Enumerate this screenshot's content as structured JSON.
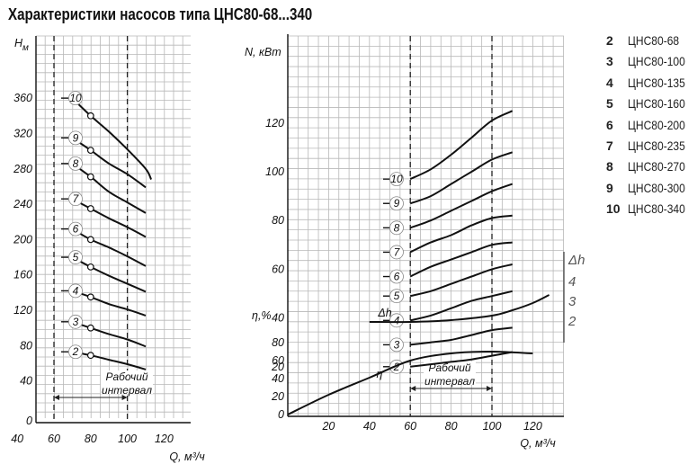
{
  "title": "Характеристики насосов типа ЦНС80-68...340",
  "legend": [
    {
      "num": "2",
      "label": "ЦНС80-68"
    },
    {
      "num": "3",
      "label": "ЦНС80-100"
    },
    {
      "num": "4",
      "label": "ЦНС80-135"
    },
    {
      "num": "5",
      "label": "ЦНС80-160"
    },
    {
      "num": "6",
      "label": "ЦНС80-200"
    },
    {
      "num": "7",
      "label": "ЦНС80-235"
    },
    {
      "num": "8",
      "label": "ЦНС80-270"
    },
    {
      "num": "9",
      "label": "ЦНС80-300"
    },
    {
      "num": "10",
      "label": "ЦНС80-340"
    }
  ],
  "chart_data": [
    {
      "type": "line",
      "ylabel_main": "H",
      "ylabel_sub": "м",
      "xlabel": "Q, м³/ч",
      "xlim": [
        30,
        120
      ],
      "ylim": [
        0,
        380
      ],
      "xticks": [
        "40",
        "60",
        "80",
        "100",
        "120"
      ],
      "yticks": [
        "0",
        "40",
        "80",
        "120",
        "160",
        "200",
        "240",
        "280",
        "320",
        "360"
      ],
      "working_interval": {
        "label_line1": "Рабочий",
        "label_line2": "интервал",
        "from": 60,
        "to": 100
      },
      "series": [
        {
          "name": "2",
          "x": [
            70,
            80,
            90,
            100,
            110
          ],
          "y": [
            73,
            69,
            64,
            59,
            53
          ]
        },
        {
          "name": "3",
          "x": [
            70,
            80,
            90,
            100,
            110
          ],
          "y": [
            107,
            100,
            93,
            87,
            79
          ]
        },
        {
          "name": "4",
          "x": [
            70,
            80,
            90,
            100,
            110
          ],
          "y": [
            142,
            135,
            127,
            121,
            114
          ]
        },
        {
          "name": "5",
          "x": [
            70,
            80,
            90,
            100,
            110
          ],
          "y": [
            180,
            169,
            159,
            150,
            141
          ]
        },
        {
          "name": "6",
          "x": [
            70,
            80,
            90,
            100,
            110
          ],
          "y": [
            212,
            200,
            191,
            181,
            170
          ]
        },
        {
          "name": "7",
          "x": [
            70,
            80,
            90,
            100,
            110
          ],
          "y": [
            246,
            235,
            224,
            214,
            203
          ]
        },
        {
          "name": "8",
          "x": [
            70,
            80,
            90,
            100,
            110
          ],
          "y": [
            286,
            271,
            254,
            242,
            230
          ]
        },
        {
          "name": "9",
          "x": [
            70,
            80,
            90,
            100,
            110
          ],
          "y": [
            315,
            301,
            286,
            274,
            259
          ]
        },
        {
          "name": "10",
          "x": [
            70,
            80,
            90,
            100,
            110,
            113
          ],
          "y": [
            360,
            340,
            322,
            302,
            280,
            268
          ]
        }
      ],
      "markers": [
        {
          "x": 80,
          "y": 69
        },
        {
          "x": 80,
          "y": 100
        },
        {
          "x": 80,
          "y": 135
        },
        {
          "x": 80,
          "y": 169
        },
        {
          "x": 80,
          "y": 200
        },
        {
          "x": 80,
          "y": 235
        },
        {
          "x": 80,
          "y": 271
        },
        {
          "x": 80,
          "y": 301
        },
        {
          "x": 80,
          "y": 340
        }
      ]
    },
    {
      "type": "line",
      "ylabel_power": "N, кВт",
      "ylabel_eff": "η,%",
      "xlabel": "Q, м³/ч",
      "xlim": [
        0,
        130
      ],
      "power_ylim": [
        0,
        130
      ],
      "eff_ylim": [
        0,
        90
      ],
      "xticks": [
        "20",
        "40",
        "60",
        "80",
        "100",
        "120"
      ],
      "power_yticks": [
        "20",
        "40",
        "60",
        "80",
        "100",
        "120"
      ],
      "eff_yticks": [
        "0",
        "20",
        "40",
        "60",
        "80"
      ],
      "working_interval": {
        "label_line1": "Рабочий",
        "label_line2": "интервал",
        "from": 60,
        "to": 100
      },
      "power_series": [
        {
          "name": "2",
          "x": [
            60,
            70,
            80,
            90,
            100,
            110
          ],
          "y": [
            20,
            21,
            22,
            23,
            24.5,
            26
          ]
        },
        {
          "name": "3",
          "x": [
            60,
            70,
            80,
            90,
            100,
            110
          ],
          "y": [
            29,
            30,
            31,
            33,
            35,
            36
          ]
        },
        {
          "name": "4",
          "x": [
            60,
            70,
            80,
            90,
            100,
            110
          ],
          "y": [
            39,
            41,
            44,
            47,
            49,
            51
          ]
        },
        {
          "name": "5",
          "x": [
            60,
            70,
            80,
            90,
            100,
            110
          ],
          "y": [
            49,
            51,
            54,
            57,
            60,
            62
          ]
        },
        {
          "name": "6",
          "x": [
            60,
            70,
            80,
            90,
            100,
            110
          ],
          "y": [
            57,
            61,
            64,
            67,
            70,
            71
          ]
        },
        {
          "name": "7",
          "x": [
            60,
            70,
            80,
            90,
            100,
            110
          ],
          "y": [
            67,
            71,
            74,
            78,
            81,
            82
          ]
        },
        {
          "name": "8",
          "x": [
            60,
            70,
            80,
            90,
            100,
            110
          ],
          "y": [
            77,
            80,
            84,
            88,
            92,
            95
          ]
        },
        {
          "name": "9",
          "x": [
            60,
            70,
            80,
            90,
            100,
            110
          ],
          "y": [
            87,
            90,
            95,
            100,
            105,
            108
          ]
        },
        {
          "name": "10",
          "x": [
            60,
            70,
            80,
            90,
            100,
            110
          ],
          "y": [
            97,
            101,
            107,
            114,
            121,
            125
          ]
        }
      ],
      "efficiency_series": {
        "name": "η",
        "x": [
          0,
          20,
          40,
          60,
          80,
          100,
          120
        ],
        "y": [
          0,
          22,
          41,
          60,
          68,
          70,
          68
        ]
      },
      "npsh_series": {
        "name": "Δh",
        "x": [
          40,
          60,
          80,
          100,
          110,
          120,
          128
        ],
        "y_eff_axis": [
          103,
          103,
          105,
          110,
          116,
          124,
          133
        ]
      },
      "npsh_scale": {
        "label": "Δh",
        "ticks": [
          "4",
          "3",
          "2"
        ]
      }
    }
  ]
}
